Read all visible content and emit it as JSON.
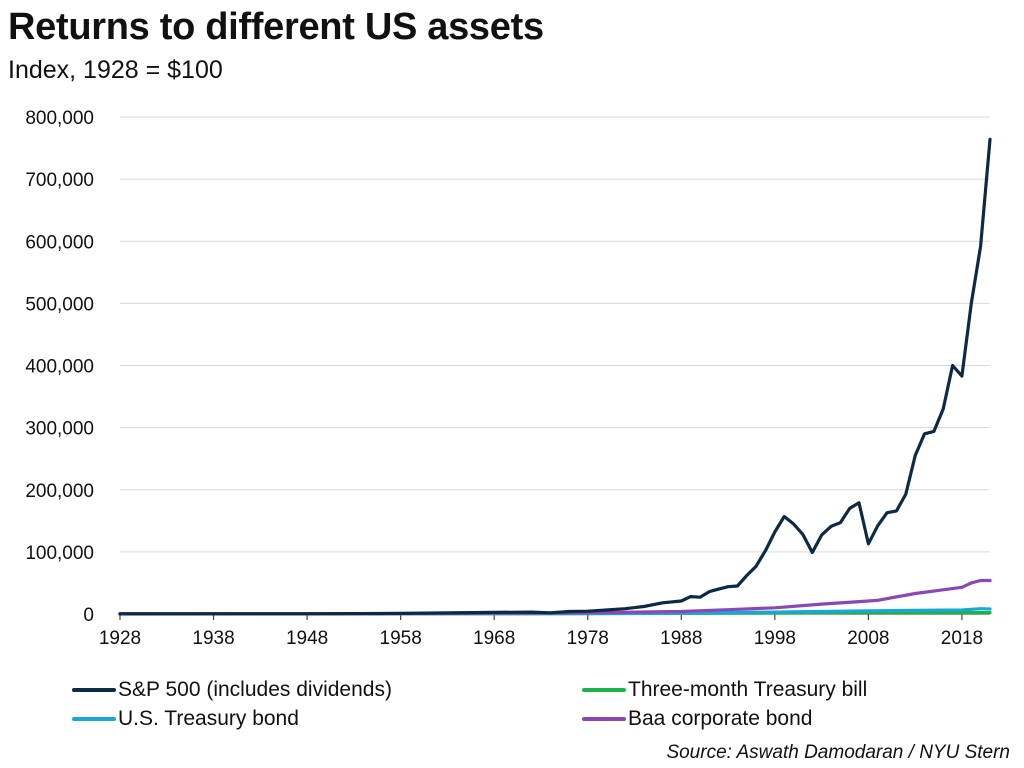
{
  "chart_data": {
    "type": "line",
    "title": "Returns to different US assets",
    "subtitle": "Index, 1928 = $100",
    "source": "Source: Aswath Damodaran / NYU Stern",
    "xlim": [
      1928,
      2021
    ],
    "ylim": [
      0,
      800000
    ],
    "xticks": [
      1928,
      1938,
      1948,
      1958,
      1968,
      1978,
      1988,
      1998,
      2008,
      2018
    ],
    "yticks": [
      0,
      100000,
      200000,
      300000,
      400000,
      500000,
      600000,
      700000,
      800000
    ],
    "ytick_labels": [
      "0",
      "100,000",
      "200,000",
      "300,000",
      "400,000",
      "500,000",
      "600,000",
      "700,000",
      "800,000"
    ],
    "grid": true,
    "series": [
      {
        "name": "S&P 500 (includes dividends)",
        "color": "#0d2a45",
        "x": [
          1928,
          1948,
          1958,
          1968,
          1972,
          1974,
          1976,
          1978,
          1980,
          1982,
          1984,
          1986,
          1988,
          1989,
          1990,
          1991,
          1992,
          1993,
          1994,
          1995,
          1996,
          1997,
          1998,
          1999,
          2000,
          2001,
          2002,
          2003,
          2004,
          2005,
          2006,
          2007,
          2008,
          2009,
          2010,
          2011,
          2012,
          2013,
          2014,
          2015,
          2016,
          2017,
          2018,
          2019,
          2020,
          2021
        ],
        "y": [
          100,
          300,
          1000,
          2500,
          3000,
          2000,
          4000,
          4500,
          6500,
          8500,
          12000,
          18000,
          21000,
          28000,
          27000,
          36000,
          40000,
          44000,
          45000,
          62000,
          77000,
          102000,
          132000,
          157000,
          145000,
          128000,
          99000,
          127000,
          141000,
          147000,
          170000,
          179000,
          113000,
          142000,
          163000,
          166000,
          193000,
          255000,
          290000,
          294000,
          330000,
          400000,
          383000,
          500000,
          592000,
          764000
        ]
      },
      {
        "name": "Baa corporate bond",
        "color": "#8b48b5",
        "x": [
          1928,
          1958,
          1968,
          1978,
          1988,
          1993,
          1998,
          2003,
          2008,
          2009,
          2013,
          2016,
          2018,
          2019,
          2020,
          2021
        ],
        "y": [
          100,
          700,
          1200,
          2000,
          4000,
          7000,
          10000,
          16000,
          21000,
          22000,
          33000,
          39000,
          43000,
          50000,
          54000,
          54000
        ]
      },
      {
        "name": "U.S. Treasury bond",
        "color": "#1aa7d6",
        "x": [
          1928,
          1958,
          1968,
          1978,
          1988,
          1998,
          2008,
          2013,
          2018,
          2020,
          2021
        ],
        "y": [
          100,
          350,
          500,
          800,
          1600,
          3000,
          5000,
          6000,
          6500,
          8500,
          8000
        ]
      },
      {
        "name": "Three-month Treasury bill",
        "color": "#1db34a",
        "x": [
          1928,
          1958,
          1978,
          1988,
          1998,
          2008,
          2021
        ],
        "y": [
          100,
          250,
          550,
          1000,
          1600,
          2100,
          2200
        ]
      }
    ],
    "legend": [
      {
        "label": "S&P 500 (includes dividends)",
        "color": "#0d2a45"
      },
      {
        "label": "Three-month Treasury bill",
        "color": "#1db34a"
      },
      {
        "label": "U.S. Treasury bond",
        "color": "#1aa7d6"
      },
      {
        "label": "Baa corporate bond",
        "color": "#8b48b5"
      }
    ]
  }
}
